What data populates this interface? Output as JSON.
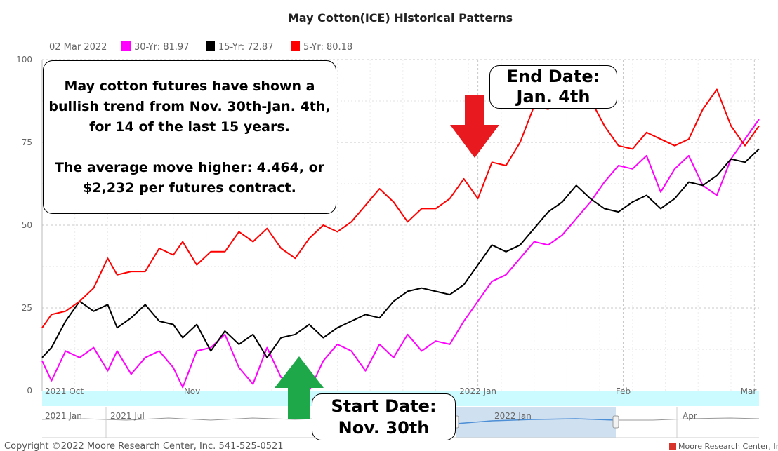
{
  "header": {
    "title": "May Cotton(ICE) Historical Patterns",
    "date": "02 Mar 2022",
    "legend": [
      {
        "label": "30-Yr: 81.97",
        "color": "#ff00ff",
        "icon": "square-swatch-icon"
      },
      {
        "label": "15-Yr: 72.87",
        "color": "#000000",
        "icon": "square-swatch-icon"
      },
      {
        "label": "5-Yr: 80.18",
        "color": "#ff0000",
        "icon": "square-swatch-icon"
      }
    ]
  },
  "annotations": {
    "note_lines": [
      "May cotton futures have shown a",
      "bullish trend from Nov. 30th-Jan. 4th,",
      "for 14 of the last 15 years.",
      "",
      "The average move higher: 4.464, or",
      "$2,232 per futures contract."
    ],
    "end_lines": [
      "End Date:",
      "Jan. 4th"
    ],
    "start_lines": [
      "Start Date:",
      "Nov. 30th"
    ],
    "end_arrow_color": "#e8191f",
    "start_arrow_color": "#1fa84a"
  },
  "navigator": {
    "labels": [
      "2021 Jan",
      "2021 Jul",
      "2022 Jan",
      "Apr"
    ]
  },
  "footer": {
    "copyright": "Copyright ©2022 Moore Research Center, Inc. 541-525-0521",
    "brand": "Moore Research Center, Inc.",
    "brand_icon": "moore-logo-icon"
  },
  "chart_data": {
    "type": "line",
    "title": "May Cotton(ICE) Historical Patterns",
    "x_axis_labels": [
      "2021 Oct",
      "Nov",
      "2022 Jan",
      "Feb",
      "Mar"
    ],
    "ylim": [
      0,
      100
    ],
    "yticks": [
      0,
      25,
      50,
      75,
      100
    ],
    "grid": true,
    "legend_position": "top-left",
    "x_start": "2021-09-30",
    "x_end": "2022-03-02",
    "series": [
      {
        "name": "30-Yr: 81.97",
        "color": "#ff00ff",
        "x": [
          "2021-09-30",
          "2021-10-02",
          "2021-10-05",
          "2021-10-08",
          "2021-10-11",
          "2021-10-14",
          "2021-10-16",
          "2021-10-19",
          "2021-10-22",
          "2021-10-25",
          "2021-10-28",
          "2021-10-30",
          "2021-11-02",
          "2021-11-05",
          "2021-11-08",
          "2021-11-11",
          "2021-11-14",
          "2021-11-17",
          "2021-11-20",
          "2021-11-23",
          "2021-11-26",
          "2021-11-29",
          "2021-12-02",
          "2021-12-05",
          "2021-12-08",
          "2021-12-11",
          "2021-12-14",
          "2021-12-17",
          "2021-12-20",
          "2021-12-23",
          "2021-12-26",
          "2021-12-29",
          "2022-01-01",
          "2022-01-04",
          "2022-01-07",
          "2022-01-10",
          "2022-01-13",
          "2022-01-16",
          "2022-01-19",
          "2022-01-22",
          "2022-01-25",
          "2022-01-28",
          "2022-01-31",
          "2022-02-03",
          "2022-02-06",
          "2022-02-09",
          "2022-02-12",
          "2022-02-15",
          "2022-02-18",
          "2022-02-21",
          "2022-02-24",
          "2022-02-27",
          "2022-03-02"
        ],
        "values": [
          9,
          3,
          12,
          10,
          13,
          6,
          12,
          5,
          10,
          12,
          7,
          1,
          12,
          13,
          17,
          7,
          2,
          13,
          4,
          2,
          0,
          9,
          14,
          12,
          6,
          14,
          10,
          17,
          12,
          15,
          14,
          21,
          27,
          33,
          35,
          40,
          45,
          44,
          47,
          52,
          57,
          63,
          68,
          67,
          71,
          60,
          67,
          71,
          62,
          59,
          70,
          76,
          82
        ]
      },
      {
        "name": "15-Yr: 72.87",
        "color": "#000000",
        "x": [
          "2021-09-30",
          "2021-10-02",
          "2021-10-05",
          "2021-10-08",
          "2021-10-11",
          "2021-10-14",
          "2021-10-16",
          "2021-10-19",
          "2021-10-22",
          "2021-10-25",
          "2021-10-28",
          "2021-10-30",
          "2021-11-02",
          "2021-11-05",
          "2021-11-08",
          "2021-11-11",
          "2021-11-14",
          "2021-11-17",
          "2021-11-20",
          "2021-11-23",
          "2021-11-26",
          "2021-11-29",
          "2021-12-02",
          "2021-12-05",
          "2021-12-08",
          "2021-12-11",
          "2021-12-14",
          "2021-12-17",
          "2021-12-20",
          "2021-12-23",
          "2021-12-26",
          "2021-12-29",
          "2022-01-01",
          "2022-01-04",
          "2022-01-07",
          "2022-01-10",
          "2022-01-13",
          "2022-01-16",
          "2022-01-19",
          "2022-01-22",
          "2022-01-25",
          "2022-01-28",
          "2022-01-31",
          "2022-02-03",
          "2022-02-06",
          "2022-02-09",
          "2022-02-12",
          "2022-02-15",
          "2022-02-18",
          "2022-02-21",
          "2022-02-24",
          "2022-02-27",
          "2022-03-02"
        ],
        "values": [
          10,
          13,
          21,
          27,
          24,
          26,
          19,
          22,
          26,
          21,
          20,
          16,
          20,
          12,
          18,
          14,
          17,
          10,
          16,
          17,
          20,
          16,
          19,
          21,
          23,
          22,
          27,
          30,
          31,
          30,
          29,
          32,
          38,
          44,
          42,
          44,
          49,
          54,
          57,
          62,
          58,
          55,
          54,
          57,
          59,
          55,
          58,
          63,
          62,
          65,
          70,
          69,
          73
        ]
      },
      {
        "name": "5-Yr: 80.18",
        "color": "#ff0000",
        "x": [
          "2021-09-30",
          "2021-10-02",
          "2021-10-05",
          "2021-10-08",
          "2021-10-11",
          "2021-10-14",
          "2021-10-16",
          "2021-10-19",
          "2021-10-22",
          "2021-10-25",
          "2021-10-28",
          "2021-10-30",
          "2021-11-02",
          "2021-11-05",
          "2021-11-08",
          "2021-11-11",
          "2021-11-14",
          "2021-11-17",
          "2021-11-20",
          "2021-11-23",
          "2021-11-26",
          "2021-11-29",
          "2021-12-02",
          "2021-12-05",
          "2021-12-08",
          "2021-12-11",
          "2021-12-14",
          "2021-12-17",
          "2021-12-20",
          "2021-12-23",
          "2021-12-26",
          "2021-12-29",
          "2022-01-01",
          "2022-01-04",
          "2022-01-07",
          "2022-01-10",
          "2022-01-13",
          "2022-01-16",
          "2022-01-19",
          "2022-01-22",
          "2022-01-25",
          "2022-01-28",
          "2022-01-31",
          "2022-02-03",
          "2022-02-06",
          "2022-02-09",
          "2022-02-12",
          "2022-02-15",
          "2022-02-18",
          "2022-02-21",
          "2022-02-24",
          "2022-02-27",
          "2022-03-02"
        ],
        "values": [
          19,
          23,
          24,
          27,
          31,
          40,
          35,
          36,
          36,
          43,
          41,
          45,
          38,
          42,
          42,
          48,
          45,
          49,
          43,
          40,
          46,
          50,
          48,
          51,
          56,
          61,
          57,
          51,
          55,
          55,
          58,
          64,
          58,
          69,
          68,
          75,
          86,
          85,
          89,
          93,
          88,
          80,
          74,
          73,
          78,
          76,
          74,
          76,
          85,
          91,
          80,
          74,
          80
        ]
      }
    ]
  }
}
